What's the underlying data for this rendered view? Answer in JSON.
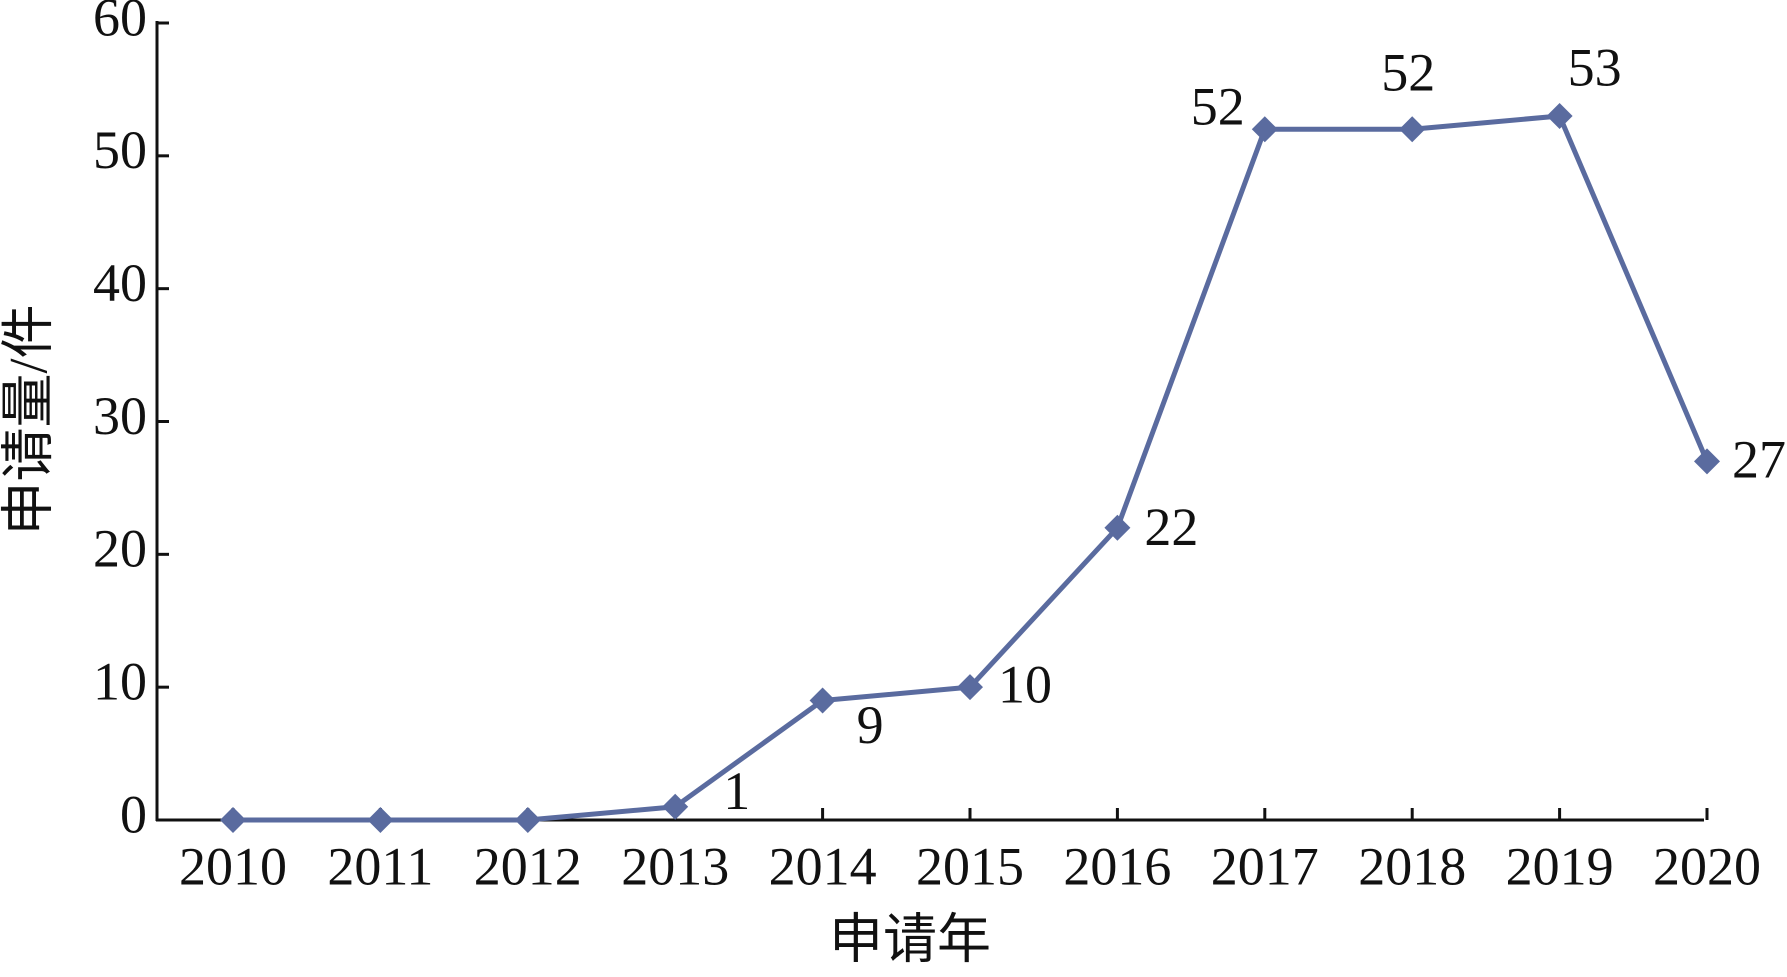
{
  "chart_data": {
    "type": "line",
    "x_label": "申请年",
    "y_label": "申请量/件",
    "categories": [
      "2010",
      "2011",
      "2012",
      "2013",
      "2014",
      "2015",
      "2016",
      "2017",
      "2018",
      "2019",
      "2020"
    ],
    "values": [
      0,
      0,
      0,
      1,
      9,
      10,
      22,
      52,
      52,
      53,
      27
    ],
    "value_labels": [
      null,
      null,
      null,
      "1",
      "9",
      "10",
      "22",
      "52",
      "52",
      "53",
      "27"
    ],
    "color": "#5a6b9f",
    "ylim": [
      0,
      60
    ],
    "yticks": [
      0,
      10,
      20,
      30,
      40,
      50,
      60
    ],
    "grid": false
  }
}
